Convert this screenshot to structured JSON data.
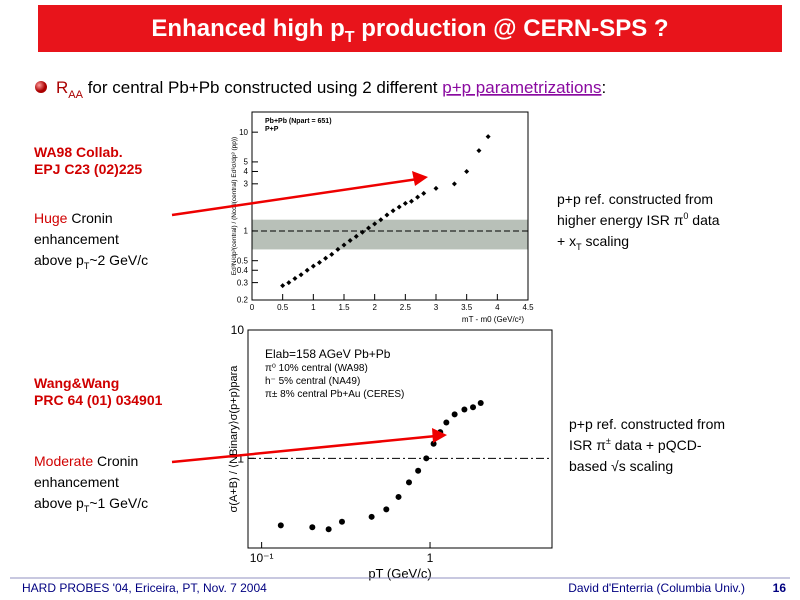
{
  "title": {
    "parts": [
      "Enhanced high p",
      "T",
      " production @ CERN-SPS ?"
    ]
  },
  "bullet": {
    "parts": [
      "R",
      "AA",
      " for central Pb+Pb constructed using 2 different ",
      "p+p parametrizations",
      ":"
    ]
  },
  "top_note": {
    "ref": [
      "WA98 Collab.",
      "EPJ C23 (02)225"
    ],
    "desc": [
      "Huge",
      " Cronin",
      "enhancement",
      "above p",
      "T",
      "~2 GeV/c"
    ],
    "right": [
      "p+p ref. constructed from",
      "higher energy ISR π",
      "0",
      " data",
      "+ x",
      "T",
      " scaling"
    ]
  },
  "bottom_note": {
    "ref": [
      "Wang&Wang",
      "PRC 64 (01) 034901"
    ],
    "desc": [
      "Moderate",
      " Cronin",
      "enhancement",
      "above p",
      "T",
      "~1 GeV/c"
    ],
    "right": [
      "p+p ref. constructed from",
      "ISR π",
      "±",
      " data + pQCD-",
      "based √s scaling"
    ]
  },
  "plots": [
    {
      "type": "scatter",
      "log_y": true,
      "log_x": false,
      "xlabel": "mT - m0 (GeV/c²)",
      "ylabel": "Ed³N/dp³(central) / (Ncoll(central) Ed³σ/dp³ (pp))",
      "legend": [
        "Pb+Pb (Npart = 651)",
        "P+P"
      ],
      "xlim": [
        0,
        4.5
      ],
      "ylim": [
        0.2,
        16
      ],
      "xticks": [
        0,
        0.5,
        1,
        1.5,
        2,
        2.5,
        3,
        3.5,
        4,
        4.5
      ],
      "yticks": [
        0.2,
        0.3,
        0.4,
        0.5,
        1,
        3,
        4,
        5,
        10
      ],
      "band": [
        0.65,
        1.3
      ],
      "ref_line": 1,
      "color": "#000",
      "x": [
        0.5,
        0.6,
        0.7,
        0.8,
        0.9,
        1.0,
        1.1,
        1.2,
        1.3,
        1.4,
        1.5,
        1.6,
        1.7,
        1.8,
        1.9,
        2.0,
        2.1,
        2.2,
        2.3,
        2.4,
        2.5,
        2.6,
        2.7,
        2.8,
        3.0,
        3.3,
        3.5,
        3.7,
        3.85
      ],
      "values": [
        0.28,
        0.3,
        0.33,
        0.36,
        0.4,
        0.44,
        0.48,
        0.53,
        0.58,
        0.65,
        0.72,
        0.8,
        0.88,
        0.97,
        1.07,
        1.18,
        1.3,
        1.45,
        1.6,
        1.75,
        1.9,
        2.0,
        2.2,
        2.4,
        2.7,
        3.0,
        4.0,
        6.5,
        9.0
      ]
    },
    {
      "type": "scatter",
      "log_y": true,
      "log_x": true,
      "xlabel": "pT (GeV/c)",
      "ylabel": "σ(A+B) / ⟨NBinary⟩σ(p+p)para",
      "legend": [
        "Elab=158 AGeV Pb+Pb",
        "π⁰ 10% central (WA98)",
        "h⁻ 5% central (NA49)",
        "π± 8% central Pb+Au (CERES)"
      ],
      "xlim": [
        0.083,
        5.3
      ],
      "ylim": [
        0.2,
        10
      ],
      "xticks": [
        {
          "value": 0.1,
          "label": "10⁻¹"
        },
        1
      ],
      "yticks": [
        1,
        10
      ],
      "ref_line": 1,
      "color": "#000",
      "x": [
        0.13,
        0.2,
        0.25,
        0.3,
        0.45,
        0.55,
        0.65,
        0.75,
        0.85,
        0.95,
        1.05,
        1.15,
        1.25,
        1.4,
        1.6,
        1.8,
        2.0
      ],
      "values": [
        0.3,
        0.29,
        0.28,
        0.32,
        0.35,
        0.4,
        0.5,
        0.65,
        0.8,
        1.0,
        1.3,
        1.6,
        1.9,
        2.2,
        2.4,
        2.5,
        2.7
      ]
    }
  ],
  "footer": {
    "left": "HARD PROBES '04, Ericeira, PT, Nov. 7 2004",
    "right": "David d'Enterria (Columbia Univ.)",
    "page": "16"
  }
}
